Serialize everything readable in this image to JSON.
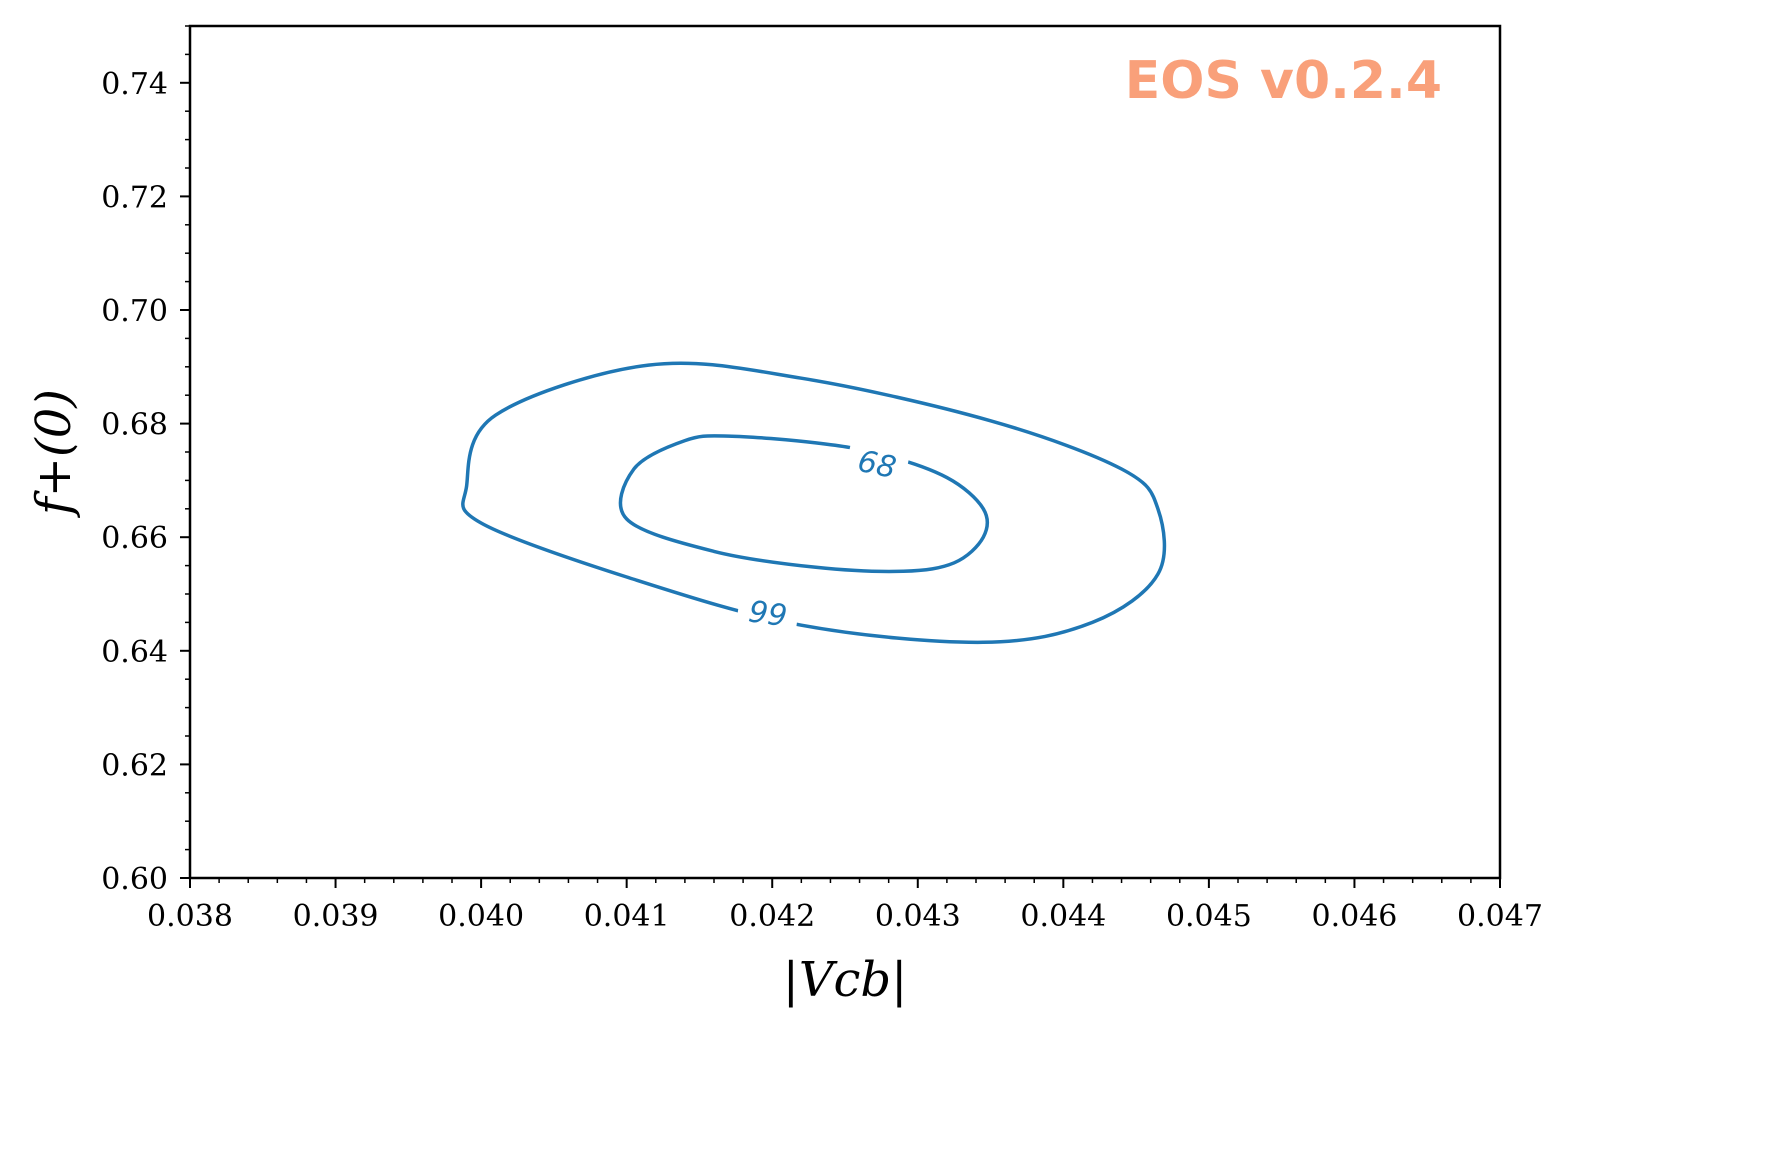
{
  "chart_data": {
    "type": "contour",
    "xlabel": "|Vcb|",
    "ylabel": "f+(0)",
    "xlim": [
      0.038,
      0.047
    ],
    "ylim": [
      0.6,
      0.75
    ],
    "x_ticks": [
      "0.038",
      "0.039",
      "0.040",
      "0.041",
      "0.042",
      "0.043",
      "0.044",
      "0.045",
      "0.046",
      "0.047"
    ],
    "y_ticks": [
      "0.60",
      "0.62",
      "0.64",
      "0.66",
      "0.68",
      "0.70",
      "0.72",
      "0.74"
    ],
    "grid": false,
    "watermark": "EOS v0.2.4",
    "watermark_color": "#f9a07a",
    "line_color": "#1f77b4",
    "contours": [
      {
        "level": "68",
        "label_at": [
          0.04272,
          0.6728
        ],
        "label_angle_deg": 12,
        "points": [
          [
            0.0417,
            0.6778
          ],
          [
            0.0423,
            0.6766
          ],
          [
            0.04275,
            0.6746
          ],
          [
            0.0432,
            0.6705
          ],
          [
            0.04345,
            0.665
          ],
          [
            0.04345,
            0.66
          ],
          [
            0.04325,
            0.6555
          ],
          [
            0.0429,
            0.654
          ],
          [
            0.0423,
            0.6547
          ],
          [
            0.0416,
            0.6575
          ],
          [
            0.041,
            0.6632
          ],
          [
            0.04105,
            0.672
          ],
          [
            0.0414,
            0.677
          ],
          [
            0.0417,
            0.6778
          ]
        ]
      },
      {
        "level": "99",
        "label_at": [
          0.04197,
          0.6465
        ],
        "label_angle_deg": 8,
        "points": [
          [
            0.04115,
            0.6903
          ],
          [
            0.0422,
            0.688
          ],
          [
            0.0435,
            0.6805
          ],
          [
            0.0444,
            0.672
          ],
          [
            0.04465,
            0.665
          ],
          [
            0.04465,
            0.6535
          ],
          [
            0.0442,
            0.645
          ],
          [
            0.04345,
            0.6415
          ],
          [
            0.0422,
            0.6445
          ],
          [
            0.041,
            0.653
          ],
          [
            0.04,
            0.6625
          ],
          [
            0.0399,
            0.669
          ],
          [
            0.0401,
            0.6815
          ],
          [
            0.04115,
            0.6903
          ]
        ]
      }
    ]
  }
}
